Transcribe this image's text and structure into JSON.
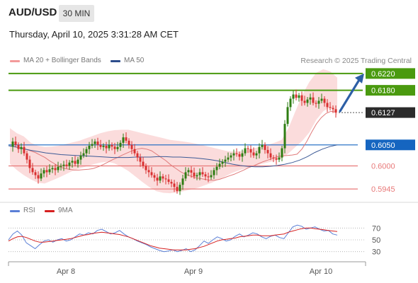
{
  "header": {
    "symbol": "AUD/USD",
    "timeframe": "30 MIN",
    "datetime": "Thursday, April 10, 2025 3:31:28 AM CET"
  },
  "legend": {
    "ma20_bb": "MA 20 + Bollinger Bands",
    "ma50": "MA 50",
    "rsi": "RSI",
    "ma9": "9MA"
  },
  "research": "Research © 2025 Trading Central",
  "colors": {
    "resistance": "#4a9a0f",
    "support": "#e87878",
    "pivot": "#1565c0",
    "bands": "#f9c9c9",
    "ma20": "#e07b7b",
    "ma50": "#3c5a96",
    "rsi": "#5a7fd6",
    "rsi_ma": "#d62020",
    "candle_up": "#2e7d12",
    "candle_down": "#d93030",
    "last_price": "#2b2b2b",
    "arrow": "#2d5fa6"
  },
  "chart_data": [
    {
      "type": "candlestick",
      "x_ticks": [
        "Apr 8",
        "Apr 9",
        "Apr 10"
      ],
      "y_range": [
        0.592,
        0.624
      ],
      "current_price": {
        "label": "0.6127",
        "value": 0.6127
      },
      "levels": [
        {
          "label": "0.6220",
          "value": 0.622,
          "kind": "resistance",
          "boxed": true
        },
        {
          "label": "0.6180",
          "value": 0.618,
          "kind": "resistance",
          "boxed": true
        },
        {
          "label": "0.6050",
          "value": 0.605,
          "kind": "pivot",
          "boxed": true
        },
        {
          "label": "0.6000",
          "value": 0.6,
          "kind": "support",
          "boxed": false
        },
        {
          "label": "0.5945",
          "value": 0.5945,
          "kind": "support",
          "boxed": false
        }
      ],
      "close_path": [
        0.6046,
        0.6058,
        0.605,
        0.604,
        0.6045,
        0.603,
        0.6015,
        0.5995,
        0.5985,
        0.5978,
        0.597,
        0.5982,
        0.599,
        0.5985,
        0.5992,
        0.5995,
        0.599,
        0.5998,
        0.6,
        0.6003,
        0.6,
        0.6008,
        0.6012,
        0.6005,
        0.6015,
        0.6025,
        0.603,
        0.604,
        0.6048,
        0.6052,
        0.6058,
        0.605,
        0.6045,
        0.6048,
        0.6042,
        0.605,
        0.6046,
        0.604,
        0.6045,
        0.6055,
        0.6068,
        0.606,
        0.605,
        0.604,
        0.603,
        0.602,
        0.601,
        0.6,
        0.599,
        0.5985,
        0.5978,
        0.5972,
        0.5965,
        0.5975,
        0.597,
        0.5968,
        0.5962,
        0.5958,
        0.595,
        0.594,
        0.5955,
        0.597,
        0.5985,
        0.599,
        0.5984,
        0.5975,
        0.5978,
        0.5985,
        0.598,
        0.5975,
        0.5973,
        0.5978,
        0.599,
        0.5998,
        0.6005,
        0.601,
        0.6015,
        0.602,
        0.6025,
        0.603,
        0.6028,
        0.6022,
        0.603,
        0.6042,
        0.604,
        0.6032,
        0.6025,
        0.603,
        0.6045,
        0.605,
        0.6038,
        0.603,
        0.602,
        0.6018,
        0.6015,
        0.602,
        0.6042,
        0.61,
        0.614,
        0.616,
        0.617,
        0.6162,
        0.6168,
        0.6155,
        0.615,
        0.6158,
        0.6163,
        0.615,
        0.6148,
        0.6155,
        0.616,
        0.615,
        0.614,
        0.6138,
        0.6135,
        0.6127
      ],
      "ma20": [
        0.604,
        0.6036,
        0.6032,
        0.6026,
        0.602,
        0.6012,
        0.6005,
        0.5998,
        0.5994,
        0.5992,
        0.599,
        0.599,
        0.5991,
        0.5992,
        0.5994,
        0.5998,
        0.6003,
        0.6009,
        0.6015,
        0.602,
        0.6026,
        0.6031,
        0.6036,
        0.604,
        0.6042,
        0.604,
        0.6036,
        0.6028,
        0.602,
        0.6012,
        0.6002,
        0.5994,
        0.5986,
        0.598,
        0.5976,
        0.5972,
        0.597,
        0.5968,
        0.5966,
        0.5966,
        0.5968,
        0.5972,
        0.5976,
        0.598,
        0.5985,
        0.599,
        0.5996,
        0.6,
        0.6005,
        0.601,
        0.6014,
        0.6018,
        0.6022,
        0.6024,
        0.6025,
        0.6026,
        0.6028,
        0.604,
        0.6058,
        0.608,
        0.61,
        0.6115,
        0.6125,
        0.613,
        0.6128
      ],
      "ma20_start": 6,
      "ma50": [
        0.6048,
        0.6045,
        0.6041,
        0.6037,
        0.6034,
        0.6031,
        0.6029,
        0.6027,
        0.6026,
        0.6025,
        0.6024,
        0.6023,
        0.6022,
        0.6021,
        0.602,
        0.602,
        0.602,
        0.6021,
        0.6021,
        0.6021,
        0.6022,
        0.6022,
        0.6021,
        0.6021,
        0.602,
        0.6019,
        0.6017,
        0.6015,
        0.6012,
        0.6008,
        0.6004,
        0.6001,
        0.5999,
        0.5998,
        0.5998,
        0.5999,
        0.6001,
        0.6004,
        0.6008,
        0.6014,
        0.6022,
        0.6032,
        0.604,
        0.6046,
        0.605
      ],
      "bb_upper": [
        0.609,
        0.6078,
        0.607,
        0.6055,
        0.6048,
        0.6045,
        0.6046,
        0.6048,
        0.6052,
        0.6056,
        0.606,
        0.6066,
        0.6072,
        0.6078,
        0.6082,
        0.6085,
        0.6086,
        0.6086,
        0.6082,
        0.6078,
        0.6074,
        0.607,
        0.6066,
        0.6062,
        0.606,
        0.6058,
        0.6055,
        0.6052,
        0.6048,
        0.6044,
        0.604,
        0.6036,
        0.6034,
        0.6035,
        0.6038,
        0.6042,
        0.6046,
        0.605,
        0.6055,
        0.6062,
        0.609,
        0.613,
        0.617,
        0.62,
        0.6222,
        0.623,
        0.6225,
        0.621
      ],
      "bb_lower": [
        0.6005,
        0.599,
        0.5978,
        0.5968,
        0.596,
        0.5958,
        0.5965,
        0.5972,
        0.598,
        0.5988,
        0.5994,
        0.5999,
        0.6004,
        0.6008,
        0.601,
        0.6006,
        0.5998,
        0.5988,
        0.5975,
        0.5962,
        0.595,
        0.594,
        0.5936,
        0.5935,
        0.5937,
        0.594,
        0.5944,
        0.5948,
        0.5954,
        0.596,
        0.5968,
        0.5976,
        0.5984,
        0.599,
        0.5995,
        0.6,
        0.6004,
        0.6008,
        0.6012,
        0.6018,
        0.603,
        0.6045,
        0.606,
        0.608,
        0.611,
        0.613,
        0.614,
        0.612
      ]
    },
    {
      "type": "line",
      "name": "RSI panel",
      "y_ticks": [
        70,
        50,
        30
      ],
      "y_range": [
        20,
        80
      ],
      "series": [
        {
          "name": "RSI",
          "values": [
            50,
            60,
            65,
            58,
            45,
            40,
            35,
            42,
            48,
            50,
            46,
            50,
            52,
            48,
            50,
            55,
            60,
            58,
            62,
            60,
            66,
            68,
            64,
            60,
            62,
            66,
            60,
            55,
            52,
            48,
            45,
            42,
            38,
            35,
            32,
            30,
            31,
            33,
            30,
            32,
            35,
            30,
            33,
            40,
            48,
            44,
            50,
            55,
            52,
            48,
            50,
            56,
            60,
            55,
            58,
            62,
            60,
            55,
            52,
            56,
            58,
            54,
            52,
            62,
            72,
            75,
            73,
            68,
            70,
            72,
            68,
            65,
            66,
            60,
            58
          ]
        },
        {
          "name": "9MA",
          "values": [
            48,
            52,
            55,
            56,
            54,
            51,
            48,
            46,
            46,
            47,
            48,
            49,
            50,
            51,
            52,
            54,
            56,
            58,
            59,
            61,
            62,
            63,
            62,
            61,
            60,
            59,
            57,
            55,
            52,
            49,
            46,
            43,
            40,
            38,
            36,
            35,
            34,
            33,
            33,
            33,
            33,
            34,
            35,
            37,
            39,
            42,
            45,
            48,
            50,
            51,
            52,
            53,
            55,
            56,
            57,
            58,
            58,
            57,
            57,
            57,
            58,
            59,
            60,
            63,
            65,
            67,
            69,
            70,
            70,
            69,
            68,
            67,
            66,
            65,
            64
          ]
        }
      ]
    }
  ]
}
